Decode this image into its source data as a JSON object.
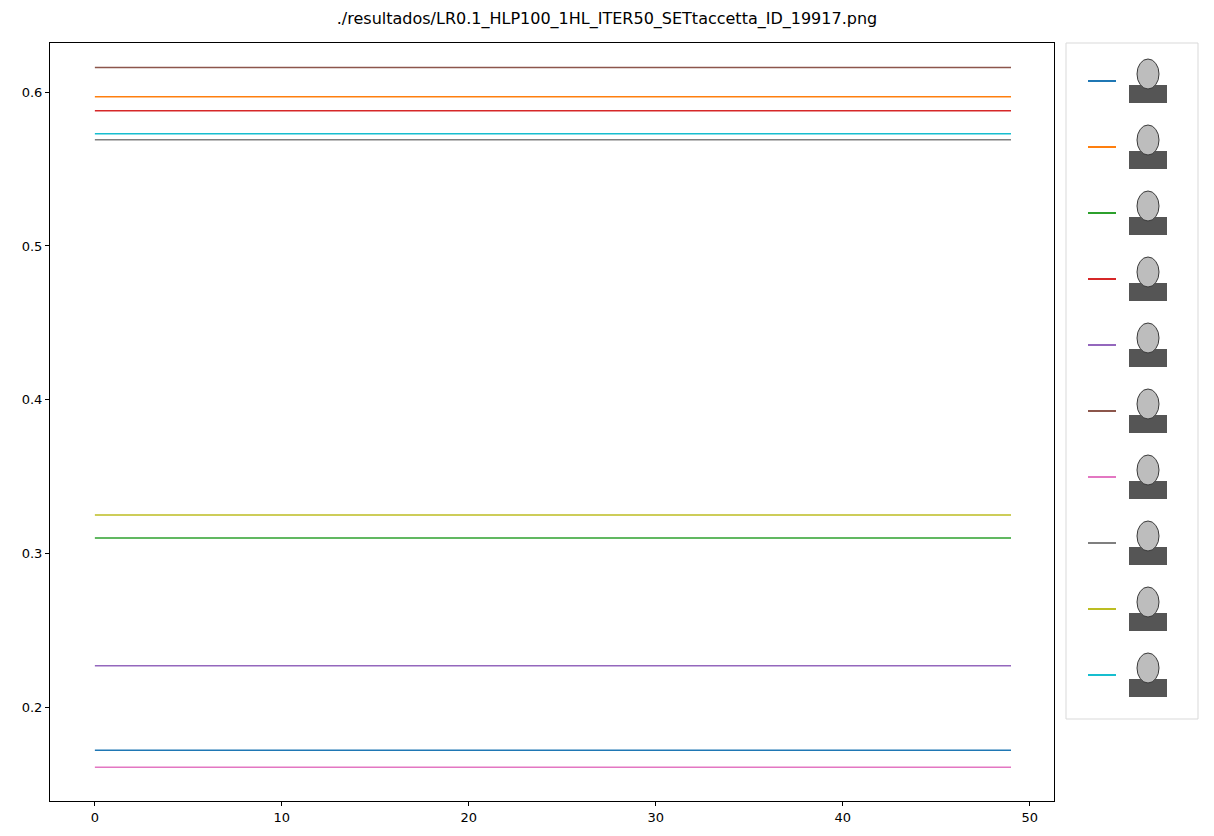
{
  "chart_data": {
    "type": "line",
    "title": "./resultados/LR0.1_HLP100_1HL_ITER50_SETtaccetta_ID_19917.png",
    "x": [
      0,
      1,
      2,
      3,
      4,
      5,
      6,
      7,
      8,
      9,
      10,
      11,
      12,
      13,
      14,
      15,
      16,
      17,
      18,
      19,
      20,
      21,
      22,
      23,
      24,
      25,
      26,
      27,
      28,
      29,
      30,
      31,
      32,
      33,
      34,
      35,
      36,
      37,
      38,
      39,
      40,
      41,
      42,
      43,
      44,
      45,
      46,
      47,
      48,
      49
    ],
    "series": [
      {
        "color": "#1f77b4",
        "values": [
          0.172,
          0.172,
          0.172,
          0.172,
          0.172,
          0.172,
          0.172,
          0.172,
          0.172,
          0.172,
          0.172,
          0.172,
          0.172,
          0.172,
          0.172,
          0.172,
          0.172,
          0.172,
          0.172,
          0.172,
          0.172,
          0.172,
          0.172,
          0.172,
          0.172,
          0.172,
          0.172,
          0.172,
          0.172,
          0.172,
          0.172,
          0.172,
          0.172,
          0.172,
          0.172,
          0.172,
          0.172,
          0.172,
          0.172,
          0.172,
          0.172,
          0.172,
          0.172,
          0.172,
          0.172,
          0.172,
          0.172,
          0.172,
          0.172,
          0.172
        ]
      },
      {
        "color": "#ff7f0e",
        "values": [
          0.597,
          0.597,
          0.597,
          0.597,
          0.597,
          0.597,
          0.597,
          0.597,
          0.597,
          0.597,
          0.597,
          0.597,
          0.597,
          0.597,
          0.597,
          0.597,
          0.597,
          0.597,
          0.597,
          0.597,
          0.597,
          0.597,
          0.597,
          0.597,
          0.597,
          0.597,
          0.597,
          0.597,
          0.597,
          0.597,
          0.597,
          0.597,
          0.597,
          0.597,
          0.597,
          0.597,
          0.597,
          0.597,
          0.597,
          0.597,
          0.597,
          0.597,
          0.597,
          0.597,
          0.597,
          0.597,
          0.597,
          0.597,
          0.597,
          0.597
        ]
      },
      {
        "color": "#2ca02c",
        "values": [
          0.31,
          0.31,
          0.31,
          0.31,
          0.31,
          0.31,
          0.31,
          0.31,
          0.31,
          0.31,
          0.31,
          0.31,
          0.31,
          0.31,
          0.31,
          0.31,
          0.31,
          0.31,
          0.31,
          0.31,
          0.31,
          0.31,
          0.31,
          0.31,
          0.31,
          0.31,
          0.31,
          0.31,
          0.31,
          0.31,
          0.31,
          0.31,
          0.31,
          0.31,
          0.31,
          0.31,
          0.31,
          0.31,
          0.31,
          0.31,
          0.31,
          0.31,
          0.31,
          0.31,
          0.31,
          0.31,
          0.31,
          0.31,
          0.31,
          0.31
        ]
      },
      {
        "color": "#d62728",
        "values": [
          0.588,
          0.588,
          0.588,
          0.588,
          0.588,
          0.588,
          0.588,
          0.588,
          0.588,
          0.588,
          0.588,
          0.588,
          0.588,
          0.588,
          0.588,
          0.588,
          0.588,
          0.588,
          0.588,
          0.588,
          0.588,
          0.588,
          0.588,
          0.588,
          0.588,
          0.588,
          0.588,
          0.588,
          0.588,
          0.588,
          0.588,
          0.588,
          0.588,
          0.588,
          0.588,
          0.588,
          0.588,
          0.588,
          0.588,
          0.588,
          0.588,
          0.588,
          0.588,
          0.588,
          0.588,
          0.588,
          0.588,
          0.588,
          0.588,
          0.588
        ]
      },
      {
        "color": "#9467bd",
        "values": [
          0.227,
          0.227,
          0.227,
          0.227,
          0.227,
          0.227,
          0.227,
          0.227,
          0.227,
          0.227,
          0.227,
          0.227,
          0.227,
          0.227,
          0.227,
          0.227,
          0.227,
          0.227,
          0.227,
          0.227,
          0.227,
          0.227,
          0.227,
          0.227,
          0.227,
          0.227,
          0.227,
          0.227,
          0.227,
          0.227,
          0.227,
          0.227,
          0.227,
          0.227,
          0.227,
          0.227,
          0.227,
          0.227,
          0.227,
          0.227,
          0.227,
          0.227,
          0.227,
          0.227,
          0.227,
          0.227,
          0.227,
          0.227,
          0.227,
          0.227
        ]
      },
      {
        "color": "#8c564b",
        "values": [
          0.616,
          0.616,
          0.616,
          0.616,
          0.616,
          0.616,
          0.616,
          0.616,
          0.616,
          0.616,
          0.616,
          0.616,
          0.616,
          0.616,
          0.616,
          0.616,
          0.616,
          0.616,
          0.616,
          0.616,
          0.616,
          0.616,
          0.616,
          0.616,
          0.616,
          0.616,
          0.616,
          0.616,
          0.616,
          0.616,
          0.616,
          0.616,
          0.616,
          0.616,
          0.616,
          0.616,
          0.616,
          0.616,
          0.616,
          0.616,
          0.616,
          0.616,
          0.616,
          0.616,
          0.616,
          0.616,
          0.616,
          0.616,
          0.616,
          0.616
        ]
      },
      {
        "color": "#e377c2",
        "values": [
          0.161,
          0.161,
          0.161,
          0.161,
          0.161,
          0.161,
          0.161,
          0.161,
          0.161,
          0.161,
          0.161,
          0.161,
          0.161,
          0.161,
          0.161,
          0.161,
          0.161,
          0.161,
          0.161,
          0.161,
          0.161,
          0.161,
          0.161,
          0.161,
          0.161,
          0.161,
          0.161,
          0.161,
          0.161,
          0.161,
          0.161,
          0.161,
          0.161,
          0.161,
          0.161,
          0.161,
          0.161,
          0.161,
          0.161,
          0.161,
          0.161,
          0.161,
          0.161,
          0.161,
          0.161,
          0.161,
          0.161,
          0.161,
          0.161,
          0.161
        ]
      },
      {
        "color": "#7f7f7f",
        "values": [
          0.569,
          0.569,
          0.569,
          0.569,
          0.569,
          0.569,
          0.569,
          0.569,
          0.569,
          0.569,
          0.569,
          0.569,
          0.569,
          0.569,
          0.569,
          0.569,
          0.569,
          0.569,
          0.569,
          0.569,
          0.569,
          0.569,
          0.569,
          0.569,
          0.569,
          0.569,
          0.569,
          0.569,
          0.569,
          0.569,
          0.569,
          0.569,
          0.569,
          0.569,
          0.569,
          0.569,
          0.569,
          0.569,
          0.569,
          0.569,
          0.569,
          0.569,
          0.569,
          0.569,
          0.569,
          0.569,
          0.569,
          0.569,
          0.569,
          0.569
        ]
      },
      {
        "color": "#bcbd22",
        "values": [
          0.325,
          0.325,
          0.325,
          0.325,
          0.325,
          0.325,
          0.325,
          0.325,
          0.325,
          0.325,
          0.325,
          0.325,
          0.325,
          0.325,
          0.325,
          0.325,
          0.325,
          0.325,
          0.325,
          0.325,
          0.325,
          0.325,
          0.325,
          0.325,
          0.325,
          0.325,
          0.325,
          0.325,
          0.325,
          0.325,
          0.325,
          0.325,
          0.325,
          0.325,
          0.325,
          0.325,
          0.325,
          0.325,
          0.325,
          0.325,
          0.325,
          0.325,
          0.325,
          0.325,
          0.325,
          0.325,
          0.325,
          0.325,
          0.325,
          0.325
        ]
      },
      {
        "color": "#17becf",
        "values": [
          0.573,
          0.573,
          0.573,
          0.573,
          0.573,
          0.573,
          0.573,
          0.573,
          0.573,
          0.573,
          0.573,
          0.573,
          0.573,
          0.573,
          0.573,
          0.573,
          0.573,
          0.573,
          0.573,
          0.573,
          0.573,
          0.573,
          0.573,
          0.573,
          0.573,
          0.573,
          0.573,
          0.573,
          0.573,
          0.573,
          0.573,
          0.573,
          0.573,
          0.573,
          0.573,
          0.573,
          0.573,
          0.573,
          0.573,
          0.573,
          0.573,
          0.573,
          0.573,
          0.573,
          0.573,
          0.573,
          0.573,
          0.573,
          0.573,
          0.573
        ]
      }
    ],
    "xlim": [
      -2.4,
      51.3
    ],
    "xticks": [
      0,
      10,
      20,
      30,
      40,
      50
    ],
    "ylim": [
      0.139,
      0.632
    ],
    "yticks": [
      0.2,
      0.3,
      0.4,
      0.5,
      0.6
    ],
    "grid": false,
    "legend": "right",
    "line_style": "solid"
  }
}
